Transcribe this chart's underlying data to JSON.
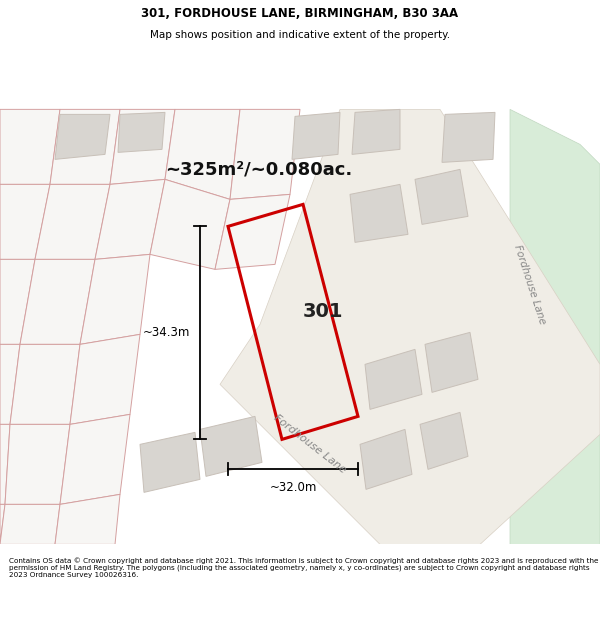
{
  "title_line1": "301, FORDHOUSE LANE, BIRMINGHAM, B30 3AA",
  "title_line2": "Map shows position and indicative extent of the property.",
  "footer_text": "Contains OS data © Crown copyright and database right 2021. This information is subject to Crown copyright and database rights 2023 and is reproduced with the permission of HM Land Registry. The polygons (including the associated geometry, namely x, y co-ordinates) are subject to Crown copyright and database rights 2023 Ordnance Survey 100026316.",
  "area_text": "~325m²/~0.080ac.",
  "label_301": "301",
  "dim_width": "~32.0m",
  "dim_height": "~34.3m",
  "map_bg": "#f7f6f4",
  "highlight_color": "#cc0000",
  "parcel_fill": "#e8e6e2",
  "building_fill": "#d8d5d0",
  "green_fill": "#d4e8d4",
  "road_label_color": "#888888",
  "road_label": "Fordhouse Lane",
  "road_label2": "Fordhouse Lane"
}
